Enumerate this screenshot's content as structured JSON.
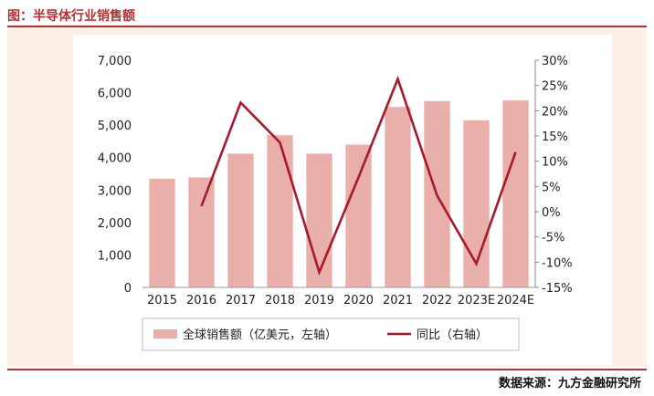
{
  "header": {
    "title": "图：半导体行业销售额"
  },
  "footer": {
    "source": "数据来源：九方金融研究所"
  },
  "colors": {
    "bar": "#e9afab",
    "line": "#a8192b",
    "accent": "#b8302f"
  },
  "chart_data": {
    "type": "bar",
    "categories": [
      "2015",
      "2016",
      "2017",
      "2018",
      "2019",
      "2020",
      "2021",
      "2022",
      "2023E",
      "2024E"
    ],
    "series": [
      {
        "name": "全球销售额（亿美元，左轴）",
        "type": "bar",
        "axis": "left",
        "values": [
          3350,
          3390,
          4120,
          4690,
          4120,
          4400,
          5560,
          5740,
          5150,
          5760
        ]
      },
      {
        "name": "同比（右轴）",
        "type": "line",
        "axis": "right",
        "values": [
          null,
          1.1,
          21.6,
          13.7,
          -12.0,
          6.8,
          26.3,
          3.2,
          -10.3,
          11.8
        ]
      }
    ],
    "left_axis": {
      "min": 0,
      "max": 7000,
      "step": 1000,
      "ticks": [
        "0",
        "1,000",
        "2,000",
        "3,000",
        "4,000",
        "5,000",
        "6,000",
        "7,000"
      ]
    },
    "right_axis": {
      "min": -15,
      "max": 30,
      "step": 5,
      "ticks": [
        "-15%",
        "-10%",
        "-5%",
        "0%",
        "5%",
        "10%",
        "15%",
        "20%",
        "25%",
        "30%"
      ]
    },
    "legend_position": "bottom",
    "grid": false
  }
}
